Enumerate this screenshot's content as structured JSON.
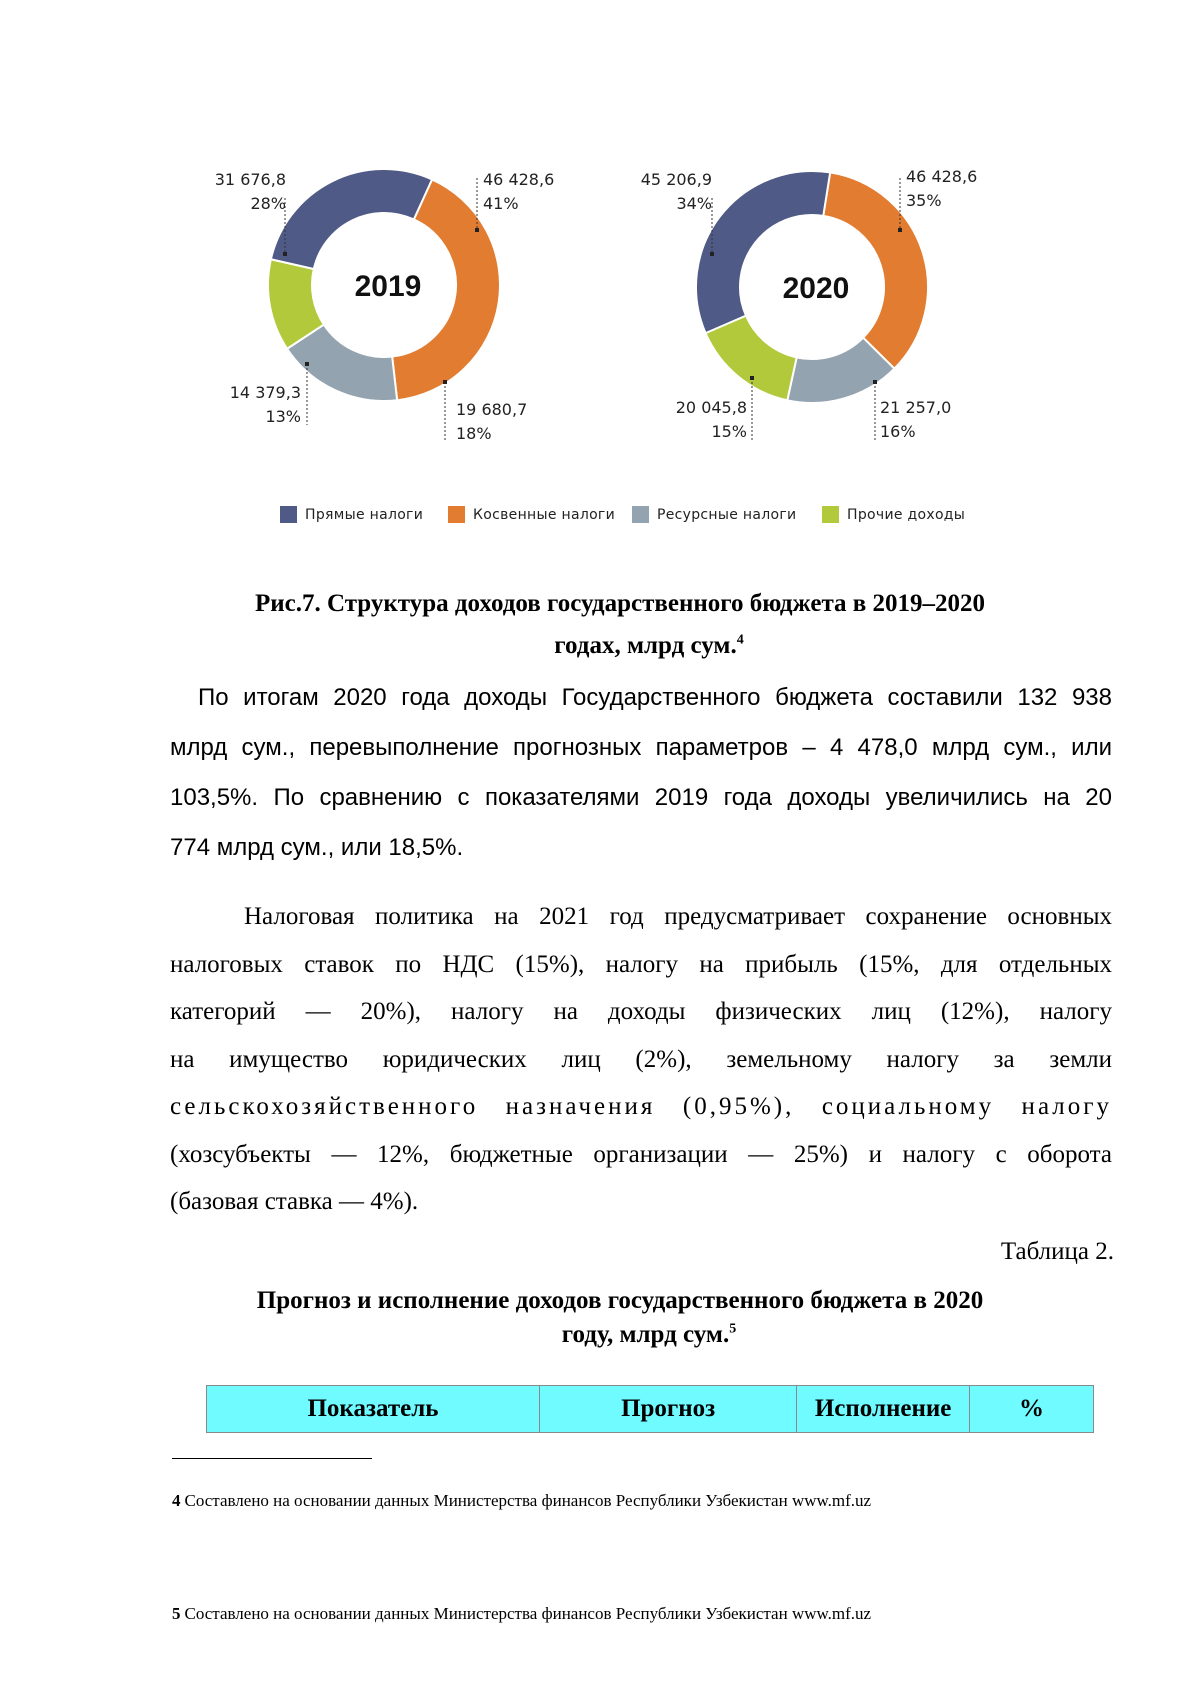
{
  "chart_data": [
    {
      "type": "pie",
      "title": "2019",
      "categories": [
        "Прямые налоги",
        "Косвенные налоги",
        "Ресурсные налоги",
        "Прочие доходы"
      ],
      "values": [
        31676.8,
        46428.6,
        19680.7,
        14379.3
      ],
      "value_labels": [
        "31 676,8",
        "46 428,6",
        "19 680,7",
        "14 379,3"
      ],
      "percent_labels": [
        "28%",
        "41%",
        "18%",
        "13%"
      ],
      "colors": [
        "#4f5a86",
        "#e27c30",
        "#94a3b0",
        "#b2c93c"
      ]
    },
    {
      "type": "pie",
      "title": "2020",
      "categories": [
        "Прямые налоги",
        "Косвенные налоги",
        "Ресурсные налоги",
        "Прочие доходы"
      ],
      "values": [
        45206.9,
        46428.6,
        21257.0,
        20045.8
      ],
      "value_labels": [
        "45 206,9",
        "46 428,6",
        "21 257,0",
        "20 045,8"
      ],
      "percent_labels": [
        "34%",
        "35%",
        "16%",
        "15%"
      ],
      "colors": [
        "#4f5a86",
        "#e27c30",
        "#94a3b0",
        "#b2c93c"
      ]
    }
  ],
  "legend": [
    {
      "label": "Прямые налоги",
      "color": "#4f5a86"
    },
    {
      "label": "Косвенные налоги",
      "color": "#e27c30"
    },
    {
      "label": "Ресурсные налоги",
      "color": "#94a3b0"
    },
    {
      "label": "Прочие доходы",
      "color": "#b2c93c"
    }
  ],
  "figure_caption": {
    "line1": "Рис.7. Структура доходов государственного бюджета в 2019–2020",
    "line2": "годах, млрд сум.",
    "footnote_ref": "4"
  },
  "paragraph1": [
    "По итогам 2020 года доходы Государственного бюджета составили 132 938",
    "млрд сум., перевыполнение прогнозных параметров – 4 478,0 млрд сум., или",
    "103,5%. По сравнению с показателями 2019 года доходы увеличились на 20",
    "774 млрд сум., или 18,5%."
  ],
  "paragraph2": [
    "Налоговая политика на 2021 год предусматривает сохранение основных",
    "налоговых ставок по НДС (15%), налогу на прибыль (15%, для отдельных",
    "категорий — 20%), налогу на доходы физических лиц (12%), налогу",
    "на имущество юридических лиц (2%), земельному налогу за земли",
    "сельскохозяйственного назначения (0,95%), социальному налогу",
    "(хозсубъекты — 12%, бюджетные организации — 25%) и налогу с оборота",
    "(базовая ставка — 4%)."
  ],
  "table_label": "Таблица 2.",
  "table_caption": {
    "line1": "Прогноз и исполнение доходов государственного бюджета в 2020",
    "line2": "году, млрд сум.",
    "footnote_ref": "5"
  },
  "table": {
    "headers": [
      "Показатель",
      "Прогноз",
      "Исполнение",
      "%"
    ],
    "header_color": "#6ffbff"
  },
  "footnotes": [
    {
      "num": "4",
      "text": "Составлено на основании данных Министерства финансов Республики Узбекистан www.mf.uz"
    },
    {
      "num": "5",
      "text": "Составлено на основании данных Министерства финансов Республики Узбекистан www.mf.uz"
    }
  ]
}
